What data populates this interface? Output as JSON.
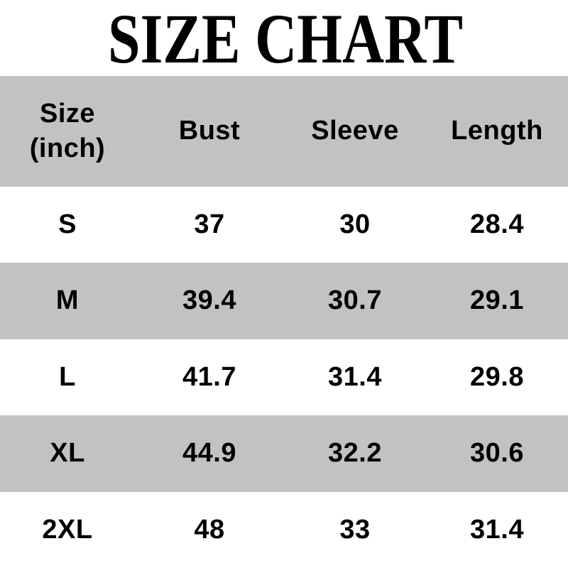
{
  "title": "SIZE CHART",
  "colors": {
    "background": "#ffffff",
    "row_gray": "#c2c2c2",
    "row_white": "#ffffff",
    "text": "#000000"
  },
  "table": {
    "header": {
      "size": "Size",
      "size_unit": "(inch)",
      "bust": "Bust",
      "sleeve": "Sleeve",
      "length": "Length"
    },
    "rows": [
      {
        "size": "S",
        "bust": "37",
        "sleeve": "30",
        "length": "28.4"
      },
      {
        "size": "M",
        "bust": "39.4",
        "sleeve": "30.7",
        "length": "29.1"
      },
      {
        "size": "L",
        "bust": "41.7",
        "sleeve": "31.4",
        "length": "29.8"
      },
      {
        "size": "XL",
        "bust": "44.9",
        "sleeve": "32.2",
        "length": "30.6"
      },
      {
        "size": "2XL",
        "bust": "48",
        "sleeve": "33",
        "length": "31.4"
      }
    ]
  },
  "chart_data": {
    "type": "table",
    "title": "SIZE CHART",
    "unit": "inch",
    "columns": [
      "Size (inch)",
      "Bust",
      "Sleeve",
      "Length"
    ],
    "rows": [
      [
        "S",
        37,
        30,
        28.4
      ],
      [
        "M",
        39.4,
        30.7,
        29.1
      ],
      [
        "L",
        41.7,
        31.4,
        29.8
      ],
      [
        "XL",
        44.9,
        32.2,
        30.6
      ],
      [
        "2XL",
        48,
        33,
        31.4
      ]
    ]
  }
}
